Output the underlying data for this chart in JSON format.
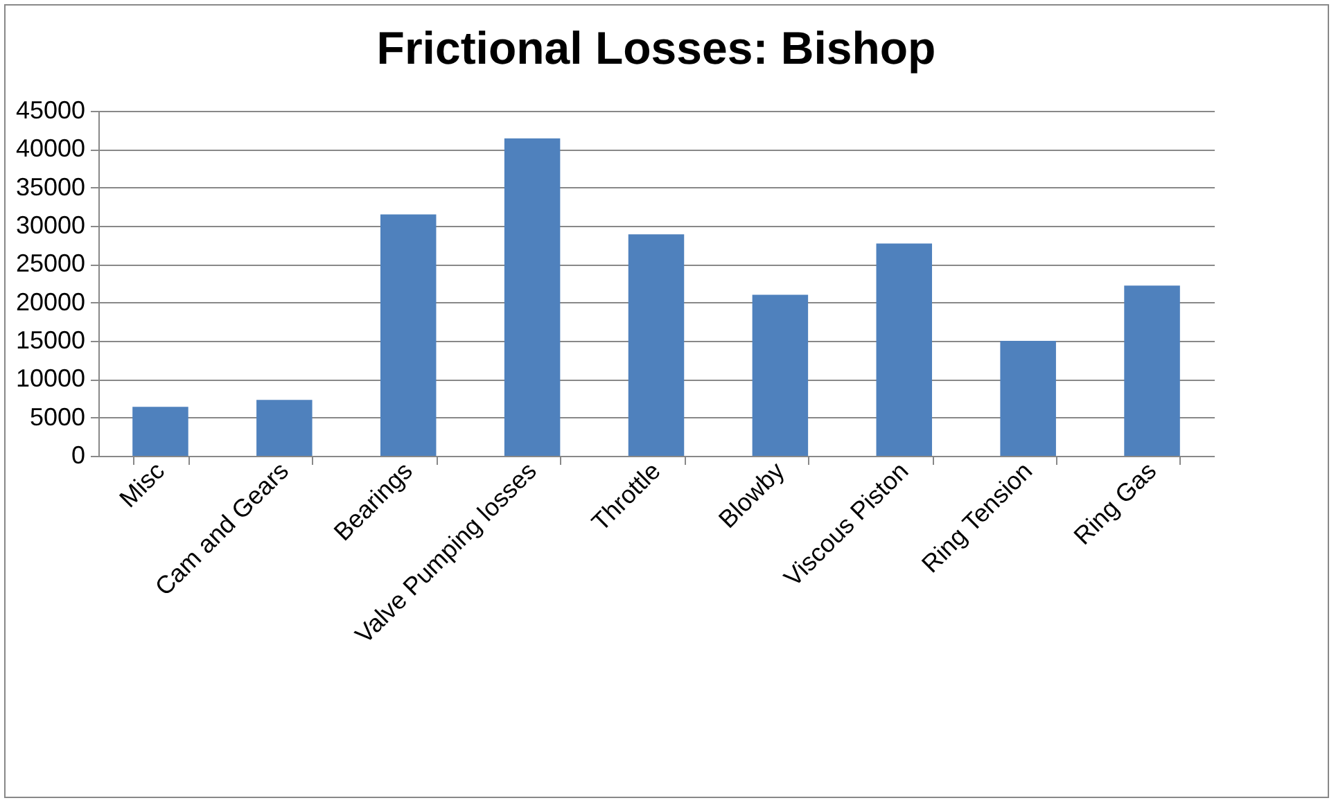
{
  "chart_data": {
    "type": "bar",
    "title": "Frictional Losses: Bishop",
    "categories": [
      "Misc",
      "Cam and Gears",
      "Bearings",
      "Valve Pumping losses",
      "Throttle",
      "Blowby",
      "Viscous Piston",
      "Ring Tension",
      "Ring Gas"
    ],
    "values": [
      6400,
      7300,
      31500,
      41400,
      28900,
      21000,
      27700,
      15000,
      22200
    ],
    "color": "#4f81bd",
    "ylim": [
      0,
      45000
    ],
    "yticks": [
      0,
      5000,
      10000,
      15000,
      20000,
      25000,
      30000,
      35000,
      40000,
      45000
    ],
    "grid": "y"
  }
}
